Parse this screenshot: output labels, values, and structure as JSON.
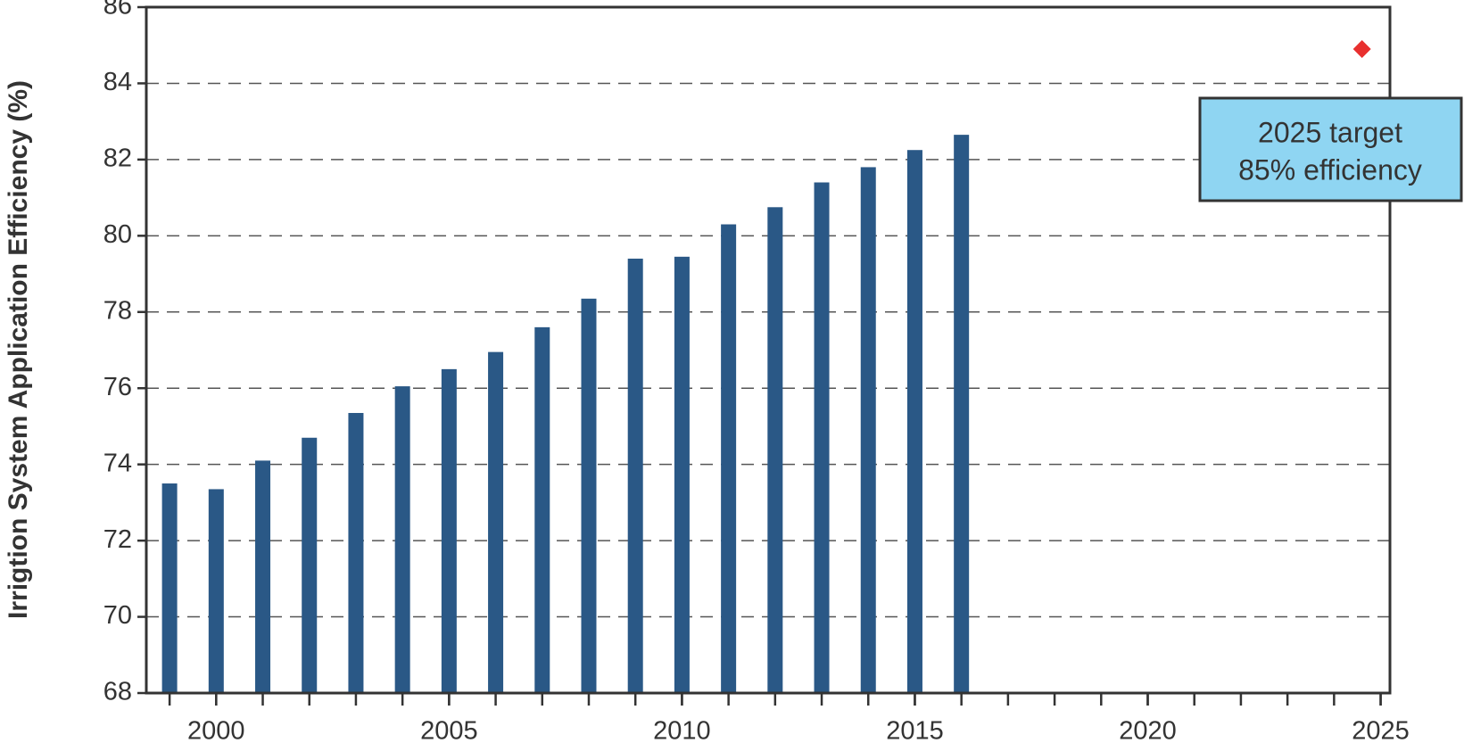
{
  "chart_data": {
    "type": "bar",
    "y_label": "Irrigtion System Application Efficiency (%)",
    "x": [
      1999,
      2000,
      2001,
      2002,
      2003,
      2004,
      2005,
      2006,
      2007,
      2008,
      2009,
      2010,
      2011,
      2012,
      2013,
      2014,
      2015,
      2016
    ],
    "values": [
      73.5,
      73.35,
      74.1,
      74.7,
      75.35,
      76.05,
      76.5,
      76.95,
      77.6,
      78.35,
      79.4,
      79.45,
      80.3,
      80.75,
      81.4,
      81.8,
      82.25,
      82.65
    ],
    "color": "#2a5886",
    "target": {
      "x": 2024.6,
      "y": 84.9,
      "color": "#e8302f"
    },
    "annotation": {
      "lines": [
        "2025 target",
        "85% efficiency"
      ],
      "fill": "#8fd5f2"
    },
    "xlim": [
      1998.5,
      2025.2
    ],
    "xticks": [
      2000,
      2005,
      2010,
      2015,
      2020,
      2025
    ],
    "xminorticks": [
      1999,
      2000,
      2001,
      2002,
      2003,
      2004,
      2005,
      2006,
      2007,
      2008,
      2009,
      2010,
      2011,
      2012,
      2013,
      2014,
      2015,
      2016,
      2017,
      2018,
      2019,
      2020,
      2021,
      2022,
      2023,
      2024,
      2025
    ],
    "ylim": [
      68,
      86
    ],
    "yticks": [
      68,
      70,
      72,
      74,
      76,
      78,
      80,
      82,
      84,
      86
    ],
    "grid": true
  }
}
